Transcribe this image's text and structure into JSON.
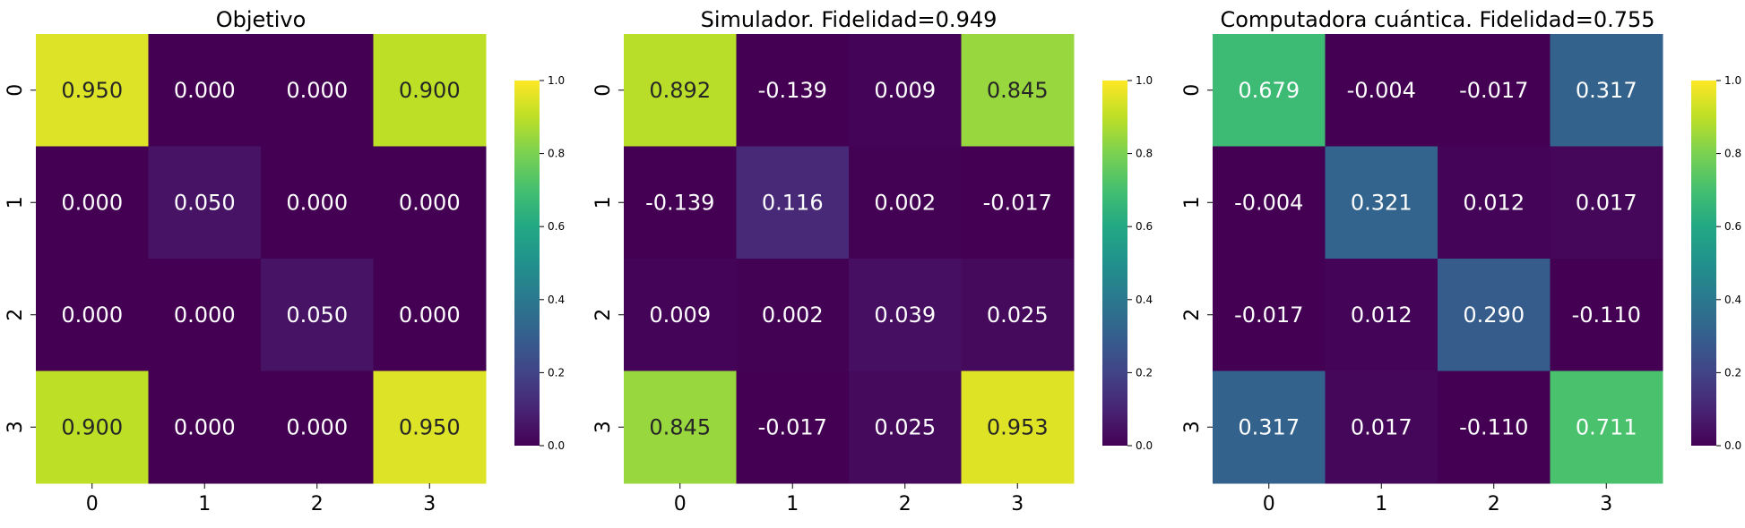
{
  "chart_data": [
    {
      "type": "heatmap",
      "title": "Objetivo",
      "x_categories": [
        "0",
        "1",
        "2",
        "3"
      ],
      "y_categories": [
        "0",
        "1",
        "2",
        "3"
      ],
      "values": [
        [
          0.95,
          0.0,
          0.0,
          0.9
        ],
        [
          0.0,
          0.05,
          0.0,
          0.0
        ],
        [
          0.0,
          0.0,
          0.05,
          0.0
        ],
        [
          0.9,
          0.0,
          0.0,
          0.95
        ]
      ],
      "value_labels": [
        [
          "0.950",
          "0.000",
          "0.000",
          "0.900"
        ],
        [
          "0.000",
          "0.050",
          "0.000",
          "0.000"
        ],
        [
          "0.000",
          "0.000",
          "0.050",
          "0.000"
        ],
        [
          "0.900",
          "0.000",
          "0.000",
          "0.950"
        ]
      ],
      "colorbar": {
        "range": [
          0,
          1
        ],
        "ticks": [
          "0.0",
          "0.2",
          "0.4",
          "0.6",
          "0.8",
          "1.0"
        ],
        "colormap": "viridis"
      }
    },
    {
      "type": "heatmap",
      "title": "Simulador.  Fidelidad=0.949",
      "x_categories": [
        "0",
        "1",
        "2",
        "3"
      ],
      "y_categories": [
        "0",
        "1",
        "2",
        "3"
      ],
      "values": [
        [
          0.892,
          -0.139,
          0.009,
          0.845
        ],
        [
          -0.139,
          0.116,
          0.002,
          -0.017
        ],
        [
          0.009,
          0.002,
          0.039,
          0.025
        ],
        [
          0.845,
          -0.017,
          0.025,
          0.953
        ]
      ],
      "value_labels": [
        [
          "0.892",
          "-0.139",
          "0.009",
          "0.845"
        ],
        [
          "-0.139",
          "0.116",
          "0.002",
          "-0.017"
        ],
        [
          "0.009",
          "0.002",
          "0.039",
          "0.025"
        ],
        [
          "0.845",
          "-0.017",
          "0.025",
          "0.953"
        ]
      ],
      "colorbar": {
        "range": [
          0,
          1
        ],
        "ticks": [
          "0.0",
          "0.2",
          "0.4",
          "0.6",
          "0.8",
          "1.0"
        ],
        "colormap": "viridis"
      }
    },
    {
      "type": "heatmap",
      "title": "Computadora cuántica. Fidelidad=0.755",
      "x_categories": [
        "0",
        "1",
        "2",
        "3"
      ],
      "y_categories": [
        "0",
        "1",
        "2",
        "3"
      ],
      "values": [
        [
          0.679,
          -0.004,
          -0.017,
          0.317
        ],
        [
          -0.004,
          0.321,
          0.012,
          0.017
        ],
        [
          -0.017,
          0.012,
          0.29,
          -0.11
        ],
        [
          0.317,
          0.017,
          -0.11,
          0.711
        ]
      ],
      "value_labels": [
        [
          "0.679",
          "-0.004",
          "-0.017",
          "0.317"
        ],
        [
          "-0.004",
          "0.321",
          "0.012",
          "0.017"
        ],
        [
          "-0.017",
          "0.012",
          "0.290",
          "-0.110"
        ],
        [
          "0.317",
          "0.017",
          "-0.110",
          "0.711"
        ]
      ],
      "colorbar": {
        "range": [
          0,
          1
        ],
        "ticks": [
          "0.0",
          "0.2",
          "0.4",
          "0.6",
          "0.8",
          "1.0"
        ],
        "colormap": "viridis"
      }
    }
  ]
}
